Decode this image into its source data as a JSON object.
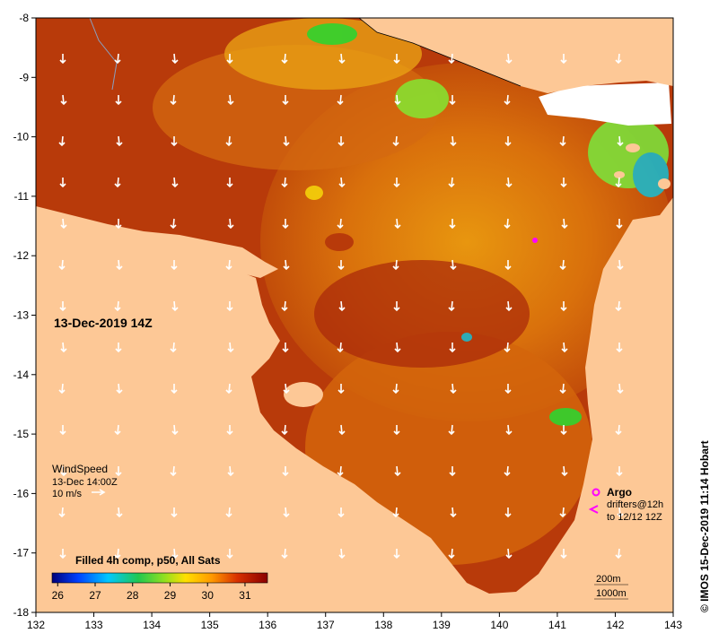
{
  "map": {
    "x_axis": {
      "min": 132,
      "max": 143,
      "ticks": [
        "132",
        "133",
        "134",
        "135",
        "136",
        "137",
        "138",
        "139",
        "140",
        "141",
        "142",
        "143"
      ]
    },
    "y_axis": {
      "min": -18,
      "max": -8,
      "ticks": [
        "-8",
        "-9",
        "-10",
        "-11",
        "-12",
        "-13",
        "-14",
        "-15",
        "-16",
        "-17",
        "-18"
      ]
    },
    "land_color": "#fdc896",
    "colors": {
      "warm": "#b42a0a",
      "mid": "#d9690c",
      "hot": "#e89a12",
      "cool_green": "#2fd42f",
      "cloud": "#ffffff",
      "argo": "#ff00ff"
    }
  },
  "date_label": "13-Dec-2019 14Z",
  "wind": {
    "title": "WindSpeed",
    "time": "13-Dec 14:00Z",
    "scale_label": "10 m/s"
  },
  "colorbar": {
    "title": "Filled 4h comp, p50, All Sats",
    "ticks": [
      "26",
      "27",
      "28",
      "29",
      "30",
      "31"
    ],
    "min": 25.85,
    "max": 31.6
  },
  "legend": {
    "argo_label": "Argo",
    "drifters_label": "drifters@12h",
    "drifters_range": "to 12/12 12Z"
  },
  "depth": {
    "label_200": "200m",
    "label_1000": "1000m"
  },
  "credit": "© IMOS 15-Dec-2019 11:14 Hobart"
}
